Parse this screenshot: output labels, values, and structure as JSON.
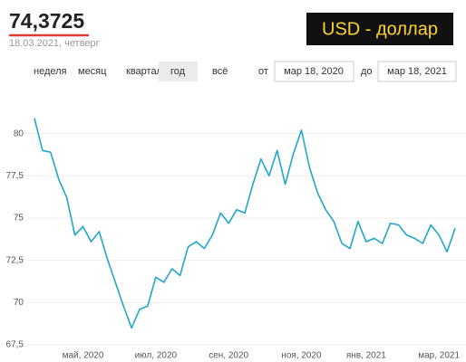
{
  "header": {
    "value": "74,3725",
    "date": "18.03.2021, четверг",
    "badge": "USD - доллар"
  },
  "controls": {
    "periods": [
      "неделя",
      "месяц",
      "квартал",
      "год",
      "всё"
    ],
    "selected": 3,
    "from_label": "от",
    "from": "мар 18, 2020",
    "to_label": "до",
    "to": "мар 18, 2021"
  },
  "chart_data": {
    "type": "line",
    "color": "#21a6c9",
    "grid": true,
    "categories": [
      null,
      null,
      null,
      null,
      null,
      null,
      "май, 2020",
      null,
      null,
      null,
      null,
      null,
      null,
      null,
      null,
      "июл, 2020",
      null,
      null,
      null,
      null,
      null,
      null,
      null,
      null,
      "сен, 2020",
      null,
      null,
      null,
      null,
      null,
      null,
      null,
      null,
      "ноя, 2020",
      null,
      null,
      null,
      null,
      null,
      null,
      null,
      "янв, 2021",
      null,
      null,
      null,
      null,
      null,
      null,
      null,
      null,
      "мар, 2021",
      null,
      null
    ],
    "values": [
      80.9,
      79.0,
      78.9,
      77.3,
      76.2,
      74.0,
      74.5,
      73.6,
      74.2,
      72.6,
      71.2,
      69.8,
      68.5,
      69.6,
      69.8,
      71.5,
      71.2,
      72.0,
      71.6,
      73.3,
      73.6,
      73.2,
      74.0,
      75.3,
      74.7,
      75.5,
      75.3,
      77.0,
      78.5,
      77.5,
      79.0,
      77.0,
      78.8,
      80.2,
      78.0,
      76.5,
      75.5,
      74.8,
      73.5,
      73.2,
      74.8,
      73.6,
      73.8,
      73.5,
      74.7,
      74.6,
      74.0,
      73.8,
      73.5,
      74.6,
      74.0,
      73.0,
      74.4
    ],
    "ylim": [
      66.75,
      81.75
    ],
    "yticks": [
      {
        "value": 67.5,
        "label": "67,5"
      },
      70,
      {
        "value": 72.5,
        "label": "72,5"
      },
      75,
      {
        "value": 77.5,
        "label": "77,5"
      },
      80
    ]
  }
}
